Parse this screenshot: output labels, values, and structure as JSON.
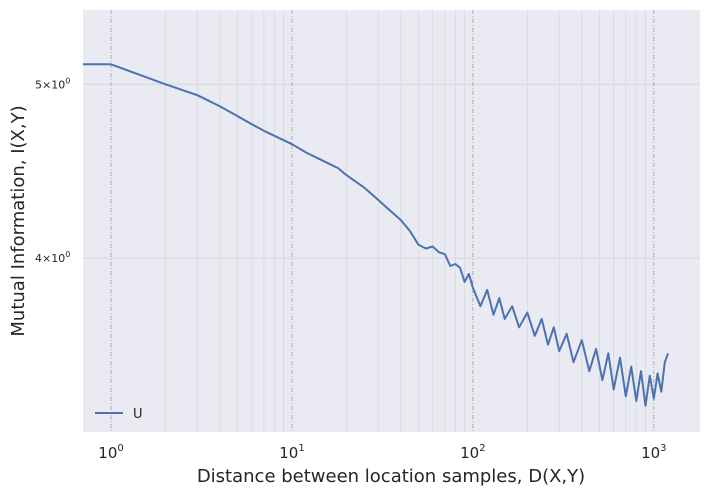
{
  "chart_data": {
    "type": "line",
    "title": "",
    "xlabel": "Distance between location samples, D(X,Y)",
    "ylabel": "Mutual Information, I(X,Y)",
    "xscale": "log",
    "yscale": "log",
    "xlim": [
      0.7,
      1800
    ],
    "ylim": [
      3.2,
      5.5
    ],
    "grid": true,
    "legend_placement": "lower-left",
    "x_ticks": [
      {
        "value": 1,
        "base": "10",
        "exp": "0"
      },
      {
        "value": 10,
        "base": "10",
        "exp": "1"
      },
      {
        "value": 100,
        "base": "10",
        "exp": "2"
      },
      {
        "value": 1000,
        "base": "10",
        "exp": "3"
      }
    ],
    "y_ticks": [
      {
        "value": 4,
        "label": "4×10",
        "exp": "0"
      },
      {
        "value": 5,
        "label": "5×10",
        "exp": "0"
      }
    ],
    "series": [
      {
        "name": "U",
        "color": "#4c72b0",
        "x": [
          0.7,
          1,
          2,
          3,
          4,
          5,
          6,
          7,
          8,
          10,
          12,
          15,
          18,
          20,
          22,
          25,
          30,
          35,
          40,
          45,
          50,
          55,
          60,
          65,
          70,
          75,
          80,
          85,
          90,
          95,
          100,
          110,
          120,
          130,
          140,
          150,
          165,
          180,
          200,
          220,
          240,
          260,
          280,
          300,
          330,
          360,
          400,
          440,
          480,
          520,
          560,
          600,
          650,
          700,
          750,
          800,
          850,
          900,
          950,
          1000,
          1050,
          1100,
          1150,
          1200
        ],
        "y": [
          5.13,
          5.13,
          5.0,
          4.93,
          4.86,
          4.8,
          4.75,
          4.71,
          4.68,
          4.63,
          4.58,
          4.53,
          4.49,
          4.45,
          4.42,
          4.38,
          4.31,
          4.25,
          4.2,
          4.14,
          4.07,
          4.05,
          4.06,
          4.03,
          4.02,
          3.96,
          3.97,
          3.95,
          3.88,
          3.92,
          3.85,
          3.76,
          3.84,
          3.72,
          3.8,
          3.7,
          3.76,
          3.66,
          3.73,
          3.62,
          3.7,
          3.58,
          3.66,
          3.55,
          3.63,
          3.5,
          3.6,
          3.46,
          3.56,
          3.42,
          3.54,
          3.38,
          3.52,
          3.35,
          3.48,
          3.33,
          3.46,
          3.31,
          3.44,
          3.34,
          3.45,
          3.37,
          3.5,
          3.54
        ]
      }
    ]
  }
}
